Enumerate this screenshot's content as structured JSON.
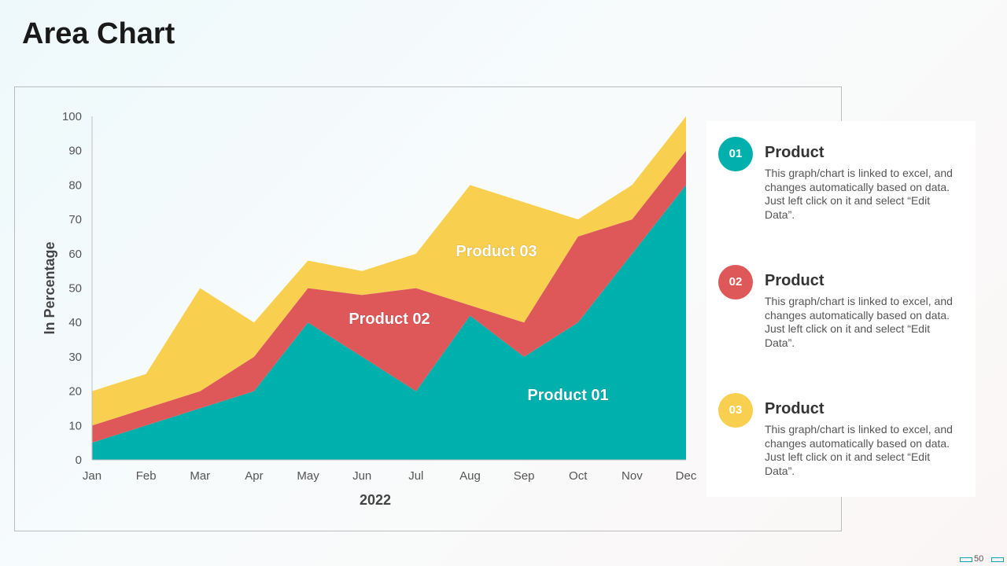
{
  "title": "Area Chart",
  "colors": {
    "product01": "#00b0ad",
    "product02": "#df5859",
    "product03": "#f8cf4f"
  },
  "chart_data": {
    "type": "area",
    "stacked": true,
    "categories": [
      "Jan",
      "Feb",
      "Mar",
      "Apr",
      "May",
      "Jun",
      "Jul",
      "Aug",
      "Sep",
      "Oct",
      "Nov",
      "Dec"
    ],
    "series": [
      {
        "name": "Product 01",
        "values": [
          5,
          10,
          15,
          20,
          40,
          30,
          20,
          42,
          30,
          40,
          60,
          80
        ]
      },
      {
        "name": "Product 02",
        "values": [
          5,
          5,
          5,
          10,
          10,
          18,
          30,
          3,
          10,
          25,
          10,
          10
        ]
      },
      {
        "name": "Product 03",
        "values": [
          10,
          10,
          30,
          10,
          8,
          7,
          10,
          35,
          35,
          5,
          10,
          10
        ]
      }
    ],
    "ylim": [
      0,
      100
    ],
    "yticks": [
      "0",
      "10",
      "20",
      "30",
      "40",
      "50",
      "60",
      "70",
      "80",
      "90",
      "100"
    ],
    "ylabel": "In Percentage",
    "xlabel": "2022",
    "area_labels": [
      "Product 01",
      "Product 02",
      "Product 03"
    ]
  },
  "legend": [
    {
      "num": "01",
      "title": "Product",
      "desc": "This graph/chart is linked to excel, and changes automatically based on data. Just left click on it and select “Edit Data”."
    },
    {
      "num": "02",
      "title": "Product",
      "desc": "This graph/chart is linked to excel, and changes automatically based on data. Just left click on it and select “Edit Data”."
    },
    {
      "num": "03",
      "title": "Product",
      "desc": "This graph/chart is linked to excel, and changes automatically based on data. Just left click on it and select “Edit Data”."
    }
  ],
  "page_number": "50"
}
